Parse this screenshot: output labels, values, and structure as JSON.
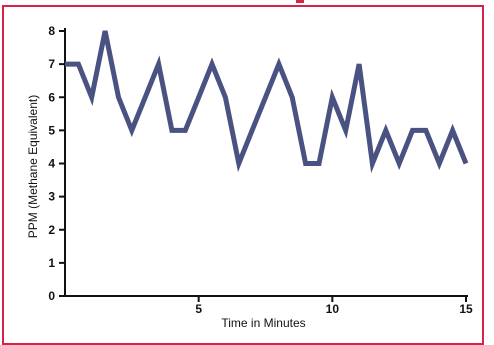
{
  "chart_data": {
    "type": "line",
    "title": "",
    "xlabel": "Time in Minutes",
    "ylabel": "PPM (Methane Equivalent)",
    "xlim": [
      0,
      15
    ],
    "ylim": [
      0,
      8
    ],
    "x_ticks": [
      5,
      10,
      15
    ],
    "y_ticks": [
      0,
      1,
      2,
      3,
      4,
      5,
      6,
      7,
      8
    ],
    "grid": false,
    "legend": "none",
    "colors": {
      "line": "#4a5282",
      "axis": "#111111",
      "frame": "#d8224a"
    },
    "series": [
      {
        "x": [
          0,
          0.5,
          1,
          1.5,
          2,
          2.5,
          3,
          3.5,
          4,
          4.5,
          5,
          5.5,
          6,
          6.5,
          7,
          7.5,
          8,
          8.5,
          9,
          9.5,
          10,
          10.5,
          11,
          11.5,
          12,
          12.5,
          13,
          13.5,
          14,
          14.5,
          15
        ],
        "values": [
          7,
          7,
          6,
          8,
          6,
          5,
          6,
          7,
          5,
          5,
          6,
          7,
          6,
          4,
          5,
          6,
          7,
          6,
          4,
          4,
          6,
          5,
          7,
          4,
          5,
          4,
          5,
          5,
          4,
          5,
          4
        ]
      }
    ]
  }
}
